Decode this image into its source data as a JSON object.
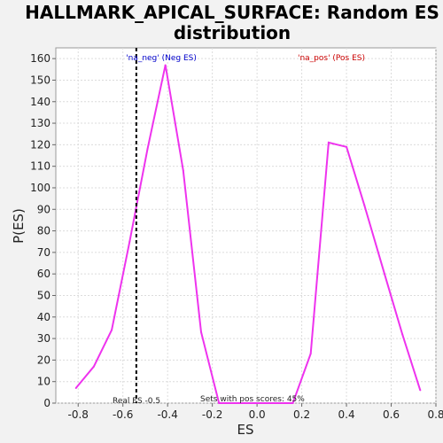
{
  "chart_data": {
    "type": "line",
    "title_lines": [
      "HALLMARK_APICAL_SURFACE: Random ES",
      "distribution"
    ],
    "xlabel": "ES",
    "ylabel": "P(ES)",
    "xlim": [
      -0.9,
      0.8
    ],
    "ylim": [
      0,
      165
    ],
    "x_ticks": [
      "-0.8",
      "-0.6",
      "-0.4",
      "-0.2",
      "0.0",
      "0.2",
      "0.4",
      "0.6",
      "0.8"
    ],
    "x_tick_values": [
      -0.8,
      -0.6,
      -0.4,
      -0.2,
      0.0,
      0.2,
      0.4,
      0.6,
      0.8
    ],
    "y_ticks": [
      "0",
      "10",
      "20",
      "30",
      "40",
      "50",
      "60",
      "70",
      "80",
      "90",
      "100",
      "110",
      "120",
      "130",
      "140",
      "150",
      "160"
    ],
    "y_tick_values": [
      0,
      10,
      20,
      30,
      40,
      50,
      60,
      70,
      80,
      90,
      100,
      110,
      120,
      130,
      140,
      150,
      160
    ],
    "grid": true,
    "series": [
      {
        "color": "#ee33ee",
        "x": [
          -0.81,
          -0.73,
          -0.65,
          -0.57,
          -0.49,
          -0.41,
          -0.33,
          -0.25,
          -0.17,
          -0.09,
          0.0,
          0.08,
          0.16,
          0.24,
          0.32,
          0.4,
          0.48,
          0.57,
          0.65,
          0.73
        ],
        "y": [
          7,
          17,
          34,
          75,
          118,
          157,
          108,
          33,
          0,
          0,
          0,
          0,
          0,
          23,
          121,
          119,
          92,
          60,
          32,
          6
        ]
      }
    ],
    "real_es": -0.54,
    "annotations": {
      "neg_label": "'na_neg' (Neg ES)",
      "pos_label": "'na_pos' (Pos ES)",
      "real_es_label": "Real ES -0.5",
      "pos_scores_label": "Sets with pos scores: 45%"
    },
    "colors": {
      "neg_label": "#0000cc",
      "pos_label": "#cc0000",
      "line": "#ee33ee",
      "real_es_line": "#000000"
    }
  }
}
